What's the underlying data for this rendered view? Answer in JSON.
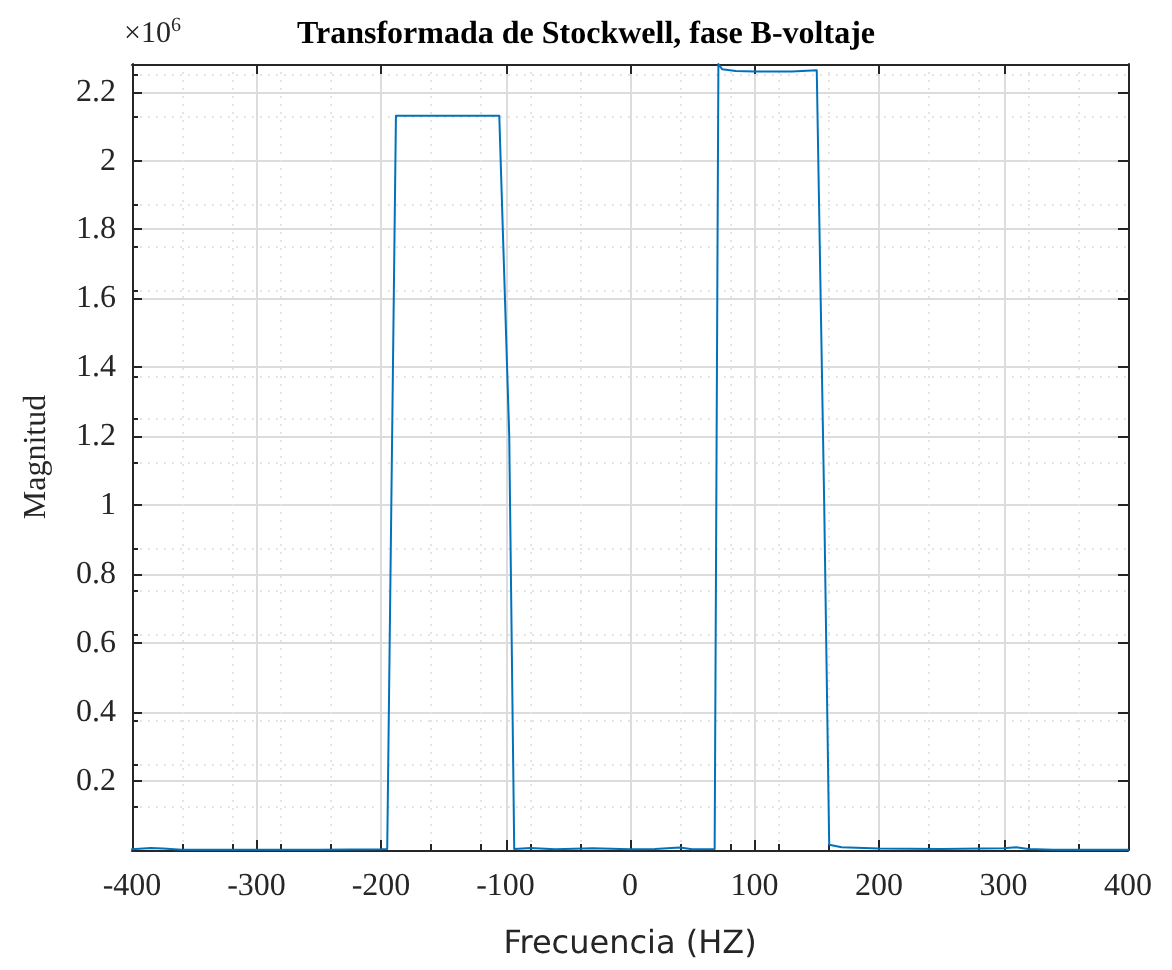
{
  "chart_data": {
    "type": "line",
    "title": "Transformada de Stockwell, fase B-voltaje",
    "xlabel": "Frecuencia (HZ)",
    "ylabel": "Magnitud",
    "annotations": [
      "×10$^{6}$"
    ],
    "series": [
      {
        "color": "#0072bd",
        "x": [
          -400,
          -385,
          -375,
          -360,
          -300,
          -250,
          -200,
          -195,
          -188,
          -150,
          -105,
          -97,
          -93,
          -80,
          -60,
          -30,
          0,
          20,
          40,
          50,
          68,
          71,
          74,
          85,
          100,
          130,
          150,
          156,
          160,
          170,
          200,
          250,
          300,
          310,
          320,
          340,
          400
        ],
        "values": [
          0.002,
          0.006,
          0.004,
          0.001,
          0.001,
          0.001,
          0.002,
          0.003,
          2.13,
          2.13,
          2.13,
          1.2,
          0.003,
          0.006,
          0.002,
          0.005,
          0.002,
          0.003,
          0.007,
          0.002,
          0.003,
          2.28,
          2.265,
          2.26,
          2.258,
          2.258,
          2.262,
          1.0,
          0.015,
          0.008,
          0.004,
          0.003,
          0.005,
          0.008,
          0.003,
          0.001,
          0.001
        ]
      }
    ],
    "xlim": [
      -400,
      400
    ],
    "xticks": [
      -400,
      -300,
      -200,
      -100,
      0,
      100,
      200,
      300,
      400
    ],
    "ylim": [
      0,
      2.28
    ],
    "yticks": [
      0.2,
      0.4,
      0.6,
      0.8,
      1,
      1.2,
      1.4,
      1.6,
      1.8,
      2,
      2.2
    ],
    "grid": true,
    "marker": "none",
    "line_style": "solid"
  }
}
